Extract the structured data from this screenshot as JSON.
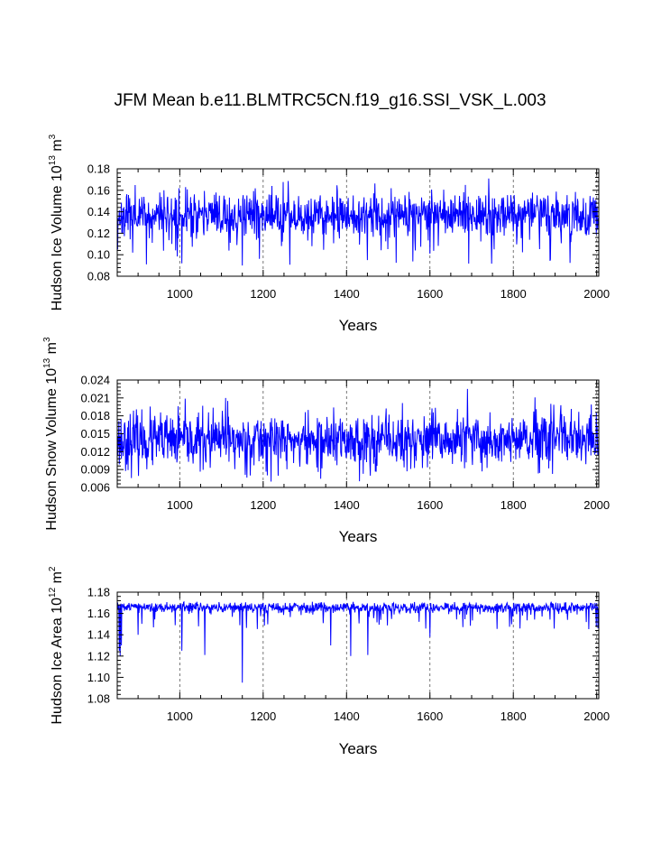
{
  "title": "JFM Mean b.e11.BLMTRC5CN.f19_g16.SSI_VSK_L.003",
  "colors": {
    "series": "#0000ff",
    "grid": "#555555",
    "axes": "#000000"
  },
  "chart_data": [
    {
      "type": "line",
      "ylabel": "Hudson Ice Volume 10",
      "ylabel_exp": "13",
      "ylabel_unit": " m",
      "ylabel_unit_exp": "3",
      "xlabel": "Years",
      "xlim": [
        850,
        2005
      ],
      "ylim": [
        0.08,
        0.18
      ],
      "xticks": [
        1000,
        1200,
        1400,
        1600,
        1800,
        2000
      ],
      "xtick_labels": [
        "1000",
        "1200",
        "1400",
        "1600",
        "1800",
        "2000"
      ],
      "yticks": [
        0.08,
        0.1,
        0.12,
        0.14,
        0.16,
        0.18
      ],
      "ytick_labels": [
        "0.08",
        "0.10",
        "0.12",
        "0.14",
        "0.16",
        "0.18"
      ],
      "grid_x": true,
      "series": [
        {
          "x_start": 850,
          "x_end": 2005,
          "mean": 0.137,
          "sd": 0.0105,
          "low_spike_prob": 0.035,
          "low_spike_min": 0.09,
          "high_cap": 0.171,
          "seed": 11,
          "events": [
            [
              850,
              0.108
            ],
            [
              851,
              0.105
            ],
            [
              887,
              0.102
            ],
            [
              1005,
              0.092
            ],
            [
              1150,
              0.09
            ],
            [
              1450,
              0.095
            ],
            [
              1600,
              0.101
            ],
            [
              1741,
              0.171
            ],
            [
              1685,
              0.165
            ]
          ]
        }
      ]
    },
    {
      "type": "line",
      "ylabel": "Hudson Snow Volume 10",
      "ylabel_exp": "13",
      "ylabel_unit": " m",
      "ylabel_unit_exp": "3",
      "xlabel": "Years",
      "xlim": [
        850,
        2005
      ],
      "ylim": [
        0.006,
        0.024
      ],
      "xticks": [
        1000,
        1200,
        1400,
        1600,
        1800,
        2000
      ],
      "xtick_labels": [
        "1000",
        "1200",
        "1400",
        "1600",
        "1800",
        "2000"
      ],
      "yticks": [
        0.006,
        0.009,
        0.012,
        0.015,
        0.018,
        0.021,
        0.024
      ],
      "ytick_labels": [
        "0.006",
        "0.009",
        "0.012",
        "0.015",
        "0.018",
        "0.021",
        "0.024"
      ],
      "grid_x": true,
      "series": [
        {
          "x_start": 850,
          "x_end": 2005,
          "mean": 0.0138,
          "sd": 0.0023,
          "low_spike_prob": 0.0,
          "low_spike_min": 0.0085,
          "high_cap": 0.0225,
          "seed": 23,
          "events": [
            [
              1110,
              0.021
            ],
            [
              1115,
              0.0205
            ],
            [
              1690,
              0.0225
            ],
            [
              1890,
              0.02
            ],
            [
              1332,
              0.0086
            ],
            [
              1545,
              0.0087
            ]
          ]
        }
      ]
    },
    {
      "type": "line",
      "ylabel": "Hudson Ice Area 10",
      "ylabel_exp": "12",
      "ylabel_unit": " m",
      "ylabel_unit_exp": "2",
      "xlabel": "Years",
      "xlim": [
        850,
        2005
      ],
      "ylim": [
        1.08,
        1.18
      ],
      "xticks": [
        1000,
        1200,
        1400,
        1600,
        1800,
        2000
      ],
      "xtick_labels": [
        "1000",
        "1200",
        "1400",
        "1600",
        "1800",
        "2000"
      ],
      "yticks": [
        1.08,
        1.1,
        1.12,
        1.14,
        1.16,
        1.18
      ],
      "ytick_labels": [
        "1.08",
        "1.10",
        "1.12",
        "1.14",
        "1.16",
        "1.18"
      ],
      "grid_x": true,
      "series": [
        {
          "x_start": 850,
          "x_end": 2005,
          "mean": 1.1655,
          "sd": 0.0025,
          "low_spike_prob": 0.05,
          "low_spike_min": 1.145,
          "high_cap": 1.171,
          "seed": 37,
          "events": [
            [
              855,
              1.125
            ],
            [
              857,
              1.12
            ],
            [
              860,
              1.13
            ],
            [
              900,
              1.14
            ],
            [
              1005,
              1.125
            ],
            [
              1060,
              1.121
            ],
            [
              1150,
              1.095
            ],
            [
              1362,
              1.13
            ],
            [
              1410,
              1.12
            ],
            [
              1451,
              1.121
            ],
            [
              1600,
              1.138
            ]
          ]
        }
      ]
    }
  ]
}
